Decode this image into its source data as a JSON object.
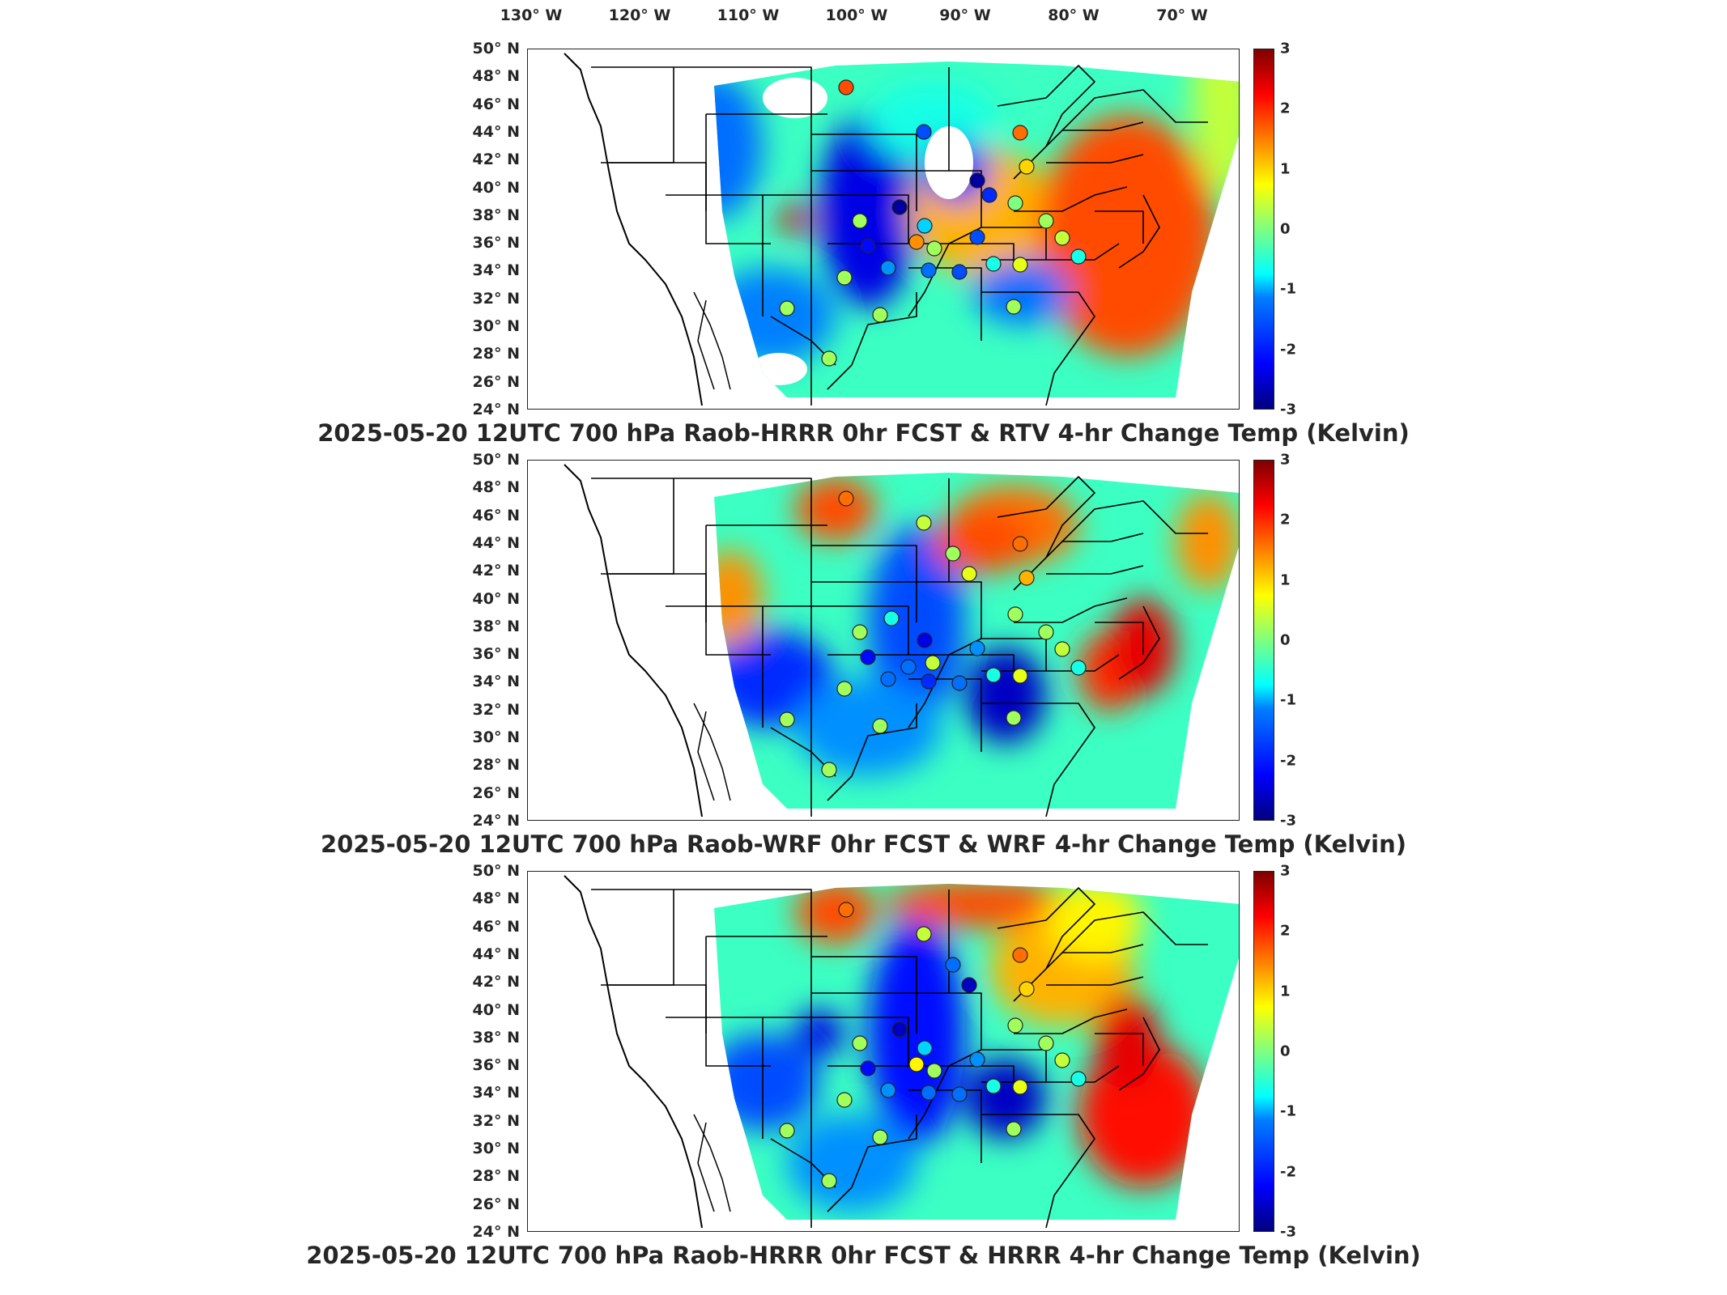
{
  "lon_labels": [
    "130° W",
    "120° W",
    "110° W",
    "100° W",
    "90° W",
    "80° W",
    "70° W"
  ],
  "lat_labels": [
    "50° N",
    "48° N",
    "46° N",
    "44° N",
    "42° N",
    "40° N",
    "38° N",
    "36° N",
    "34° N",
    "32° N",
    "30° N",
    "28° N",
    "26° N",
    "24° N"
  ],
  "colorbar_ticks": [
    "3",
    "2",
    "1",
    "0",
    "-1",
    "-2",
    "-3"
  ],
  "colormap": {
    "min": -3,
    "max": 3,
    "colors": [
      "#00007f",
      "#0000ff",
      "#007fff",
      "#00ffff",
      "#7fff7f",
      "#ffff00",
      "#ff7f00",
      "#ff0000",
      "#7f0000"
    ]
  },
  "panels": [
    {
      "title": "2025-05-20 12UTC 700 hPa Raob-HRRR 0hr FCST & RTV 4-hr Change Temp (Kelvin)"
    },
    {
      "title": "2025-05-20 12UTC 700 hPa Raob-WRF 0hr FCST & WRF 4-hr Change Temp (Kelvin)"
    },
    {
      "title": "2025-05-20 12UTC 700 hPa Raob-HRRR 0hr FCST & HRRR 4-hr Change Temp (Kelvin)"
    }
  ]
}
